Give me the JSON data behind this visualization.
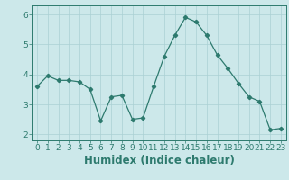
{
  "x": [
    0,
    1,
    2,
    3,
    4,
    5,
    6,
    7,
    8,
    9,
    10,
    11,
    12,
    13,
    14,
    15,
    16,
    17,
    18,
    19,
    20,
    21,
    22,
    23
  ],
  "y": [
    3.6,
    3.95,
    3.8,
    3.8,
    3.75,
    3.5,
    2.45,
    3.25,
    3.3,
    2.5,
    2.55,
    3.6,
    4.6,
    5.3,
    5.9,
    5.75,
    5.3,
    4.65,
    4.2,
    3.7,
    3.25,
    3.1,
    2.15,
    2.2
  ],
  "xlabel": "Humidex (Indice chaleur)",
  "xlim": [
    -0.5,
    23.5
  ],
  "ylim": [
    1.8,
    6.3
  ],
  "yticks": [
    2,
    3,
    4,
    5,
    6
  ],
  "xticks": [
    0,
    1,
    2,
    3,
    4,
    5,
    6,
    7,
    8,
    9,
    10,
    11,
    12,
    13,
    14,
    15,
    16,
    17,
    18,
    19,
    20,
    21,
    22,
    23
  ],
  "line_color": "#2d7a6e",
  "marker": "D",
  "marker_size": 2.2,
  "bg_color": "#cce8ea",
  "grid_color": "#aad0d4",
  "tick_label_fontsize": 6.5,
  "xlabel_fontsize": 8.5
}
